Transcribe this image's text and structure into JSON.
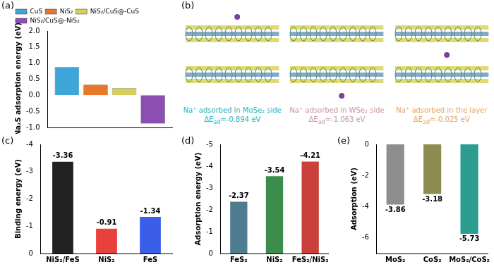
{
  "chart_data": [
    {
      "panel": "(a)",
      "type": "bar",
      "y_label": "Na₂S adsorption energy (eV)",
      "categories": [
        null
      ],
      "series": [
        {
          "name": "CuS",
          "color": "#3ea6d8",
          "values": [
            0.88
          ]
        },
        {
          "name": "NiS₂",
          "color": "#e8772a",
          "values": [
            0.33
          ]
        },
        {
          "name": "NiS₂/CuS@-CuS",
          "color": "#d8cf5a",
          "values": [
            0.22
          ]
        },
        {
          "name": "NiS₂/CuS@-NiS₂",
          "color": "#8b4fb3",
          "values": [
            -0.88
          ]
        }
      ],
      "ylim": [
        -1.0,
        2.0
      ],
      "yticks": [
        {
          "value": -1.0,
          "label": "-1.0"
        },
        {
          "value": -0.5,
          "label": "-0.5"
        },
        {
          "value": 0,
          "label": "0.0"
        },
        {
          "value": 0.5,
          "label": "0.5"
        },
        {
          "value": 1.0,
          "label": "1.0"
        },
        {
          "value": 1.5,
          "label": "1.5"
        },
        {
          "value": 2.0,
          "label": "2.0"
        }
      ],
      "legend": "top-left",
      "grid": false,
      "tick_labels": "y"
    },
    {
      "panel": "(c)",
      "type": "bar",
      "y_label": "Binding energy (eV)",
      "categories": [
        "NiS₂/FeS",
        "NiS₂",
        "FeS"
      ],
      "values": [
        -3.36,
        -0.91,
        -1.34
      ],
      "colors": [
        "#222222",
        "#e8403a",
        "#3a5ee8"
      ],
      "ylim": [
        0,
        -4
      ],
      "yticks": [
        0,
        -1,
        -2,
        -3,
        -4
      ],
      "grid": false,
      "data_labels": true
    },
    {
      "panel": "(d)",
      "type": "bar",
      "y_label": "Adsorption energy (eV)",
      "categories": [
        "FeS₂",
        "NiS₂",
        "FeS₂/NiS₂"
      ],
      "values": [
        -2.37,
        -3.54,
        -4.21
      ],
      "colors": [
        "#4f7d8f",
        "#3c8c4c",
        "#c9413a"
      ],
      "ylim": [
        0,
        -5
      ],
      "yticks": [
        0,
        -1,
        -2,
        -3,
        -4,
        -5
      ],
      "grid": false,
      "data_labels": true
    },
    {
      "panel": "(e)",
      "type": "bar",
      "y_label": "Adsorption (eV)",
      "categories": [
        "MoS₂",
        "CoS₂",
        "MoS₂/CoS₂"
      ],
      "values": [
        -3.86,
        -3.18,
        -5.73
      ],
      "colors": [
        "#8e8e8e",
        "#8f8c52",
        "#2a9d8f"
      ],
      "ylim": [
        -7,
        0
      ],
      "yticks": [
        -6,
        -4,
        -2,
        0
      ],
      "grid": false,
      "data_labels": true
    }
  ],
  "structure_panel": {
    "panel": "(b)",
    "captions": [
      {
        "text": "Na⁺ adsorbed in MoSe₂ side",
        "delta": "ΔE",
        "sub": "ad",
        "value_text": "=-0.894 eV",
        "color": "#2cb4b8"
      },
      {
        "text": "Na⁺ adsorbed in WSe₂ side",
        "delta": "ΔE",
        "sub": "ad",
        "value_text": "=-1.063 eV",
        "color": "#c79aa6"
      },
      {
        "text": "Na⁺ adsorbed in the layer",
        "delta": "ΔE",
        "sub": "ad",
        "value_text": "=-0.025 eV",
        "color": "#e3a86c"
      }
    ]
  }
}
